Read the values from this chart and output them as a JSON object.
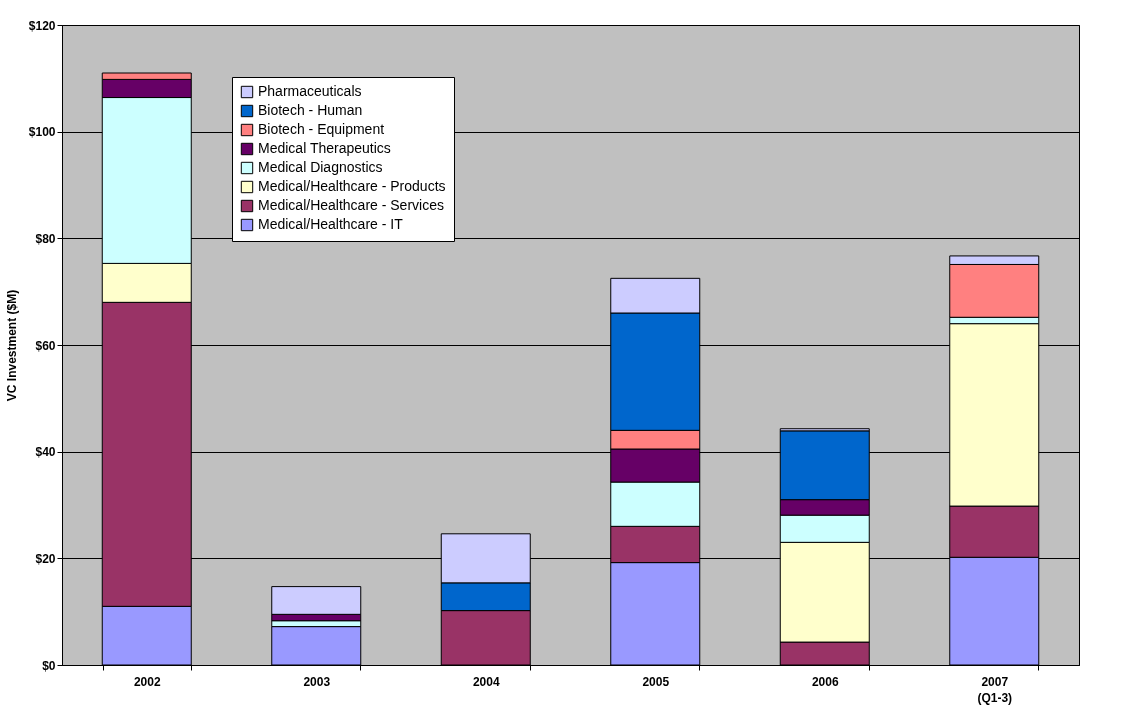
{
  "chart_data": {
    "type": "bar",
    "stacked": true,
    "ylabel": "VC Investment ($M)",
    "categories": [
      "2002",
      "2003",
      "2004",
      "2005",
      "2006",
      "2007\n(Q1-3)"
    ],
    "series": [
      {
        "name": "Medical/Healthcare - IT",
        "color": "#9999ff",
        "values": [
          11,
          7.2,
          null,
          19.2,
          null,
          20.2
        ]
      },
      {
        "name": "Medical/Healthcare - Services",
        "color": "#993366",
        "values": [
          57,
          null,
          10.2,
          6.8,
          4.3,
          9.6
        ]
      },
      {
        "name": "Medical/Healthcare - Products",
        "color": "#ffffcc",
        "values": [
          7.3,
          null,
          null,
          null,
          18.7,
          34.2
        ]
      },
      {
        "name": "Medical Diagnostics",
        "color": "#ccffff",
        "values": [
          31.1,
          1.1,
          null,
          8.3,
          5.1,
          1.2
        ]
      },
      {
        "name": "Medical Therapeutics",
        "color": "#660066",
        "values": [
          3.4,
          1.2,
          null,
          6.2,
          2.9,
          null
        ]
      },
      {
        "name": "Biotech - Equipment",
        "color": "#ff8080",
        "values": [
          1.2,
          null,
          null,
          3.5,
          null,
          9.9
        ]
      },
      {
        "name": "Biotech - Human",
        "color": "#0066cc",
        "values": [
          null,
          null,
          5.2,
          22,
          12.9,
          null
        ]
      },
      {
        "name": "Pharmaceuticals",
        "color": "#ccccff",
        "values": [
          null,
          5.2,
          9.2,
          6.5,
          0.4,
          1.6
        ]
      }
    ],
    "ylim": [
      0,
      120
    ],
    "yticks": [
      {
        "value": 0,
        "label": "$0"
      },
      {
        "value": 20,
        "label": "$20"
      },
      {
        "value": 40,
        "label": "$40"
      },
      {
        "value": 60,
        "label": "$60"
      },
      {
        "value": 80,
        "label": "$80"
      },
      {
        "value": 100,
        "label": "$100"
      },
      {
        "value": 120,
        "label": "$120"
      }
    ],
    "grid": "y",
    "legend": "top left"
  }
}
